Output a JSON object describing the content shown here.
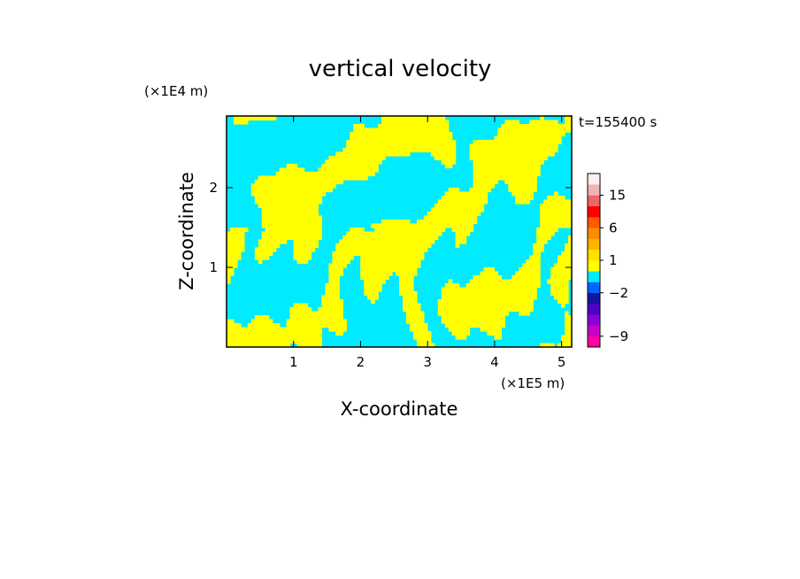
{
  "chart_data": {
    "type": "heatmap",
    "title": "vertical velocity",
    "xlabel": "X-coordinate",
    "ylabel": "Z-coordinate",
    "x_scale_label": "(×1E5 m)",
    "y_scale_label": "(×1E4 m)",
    "time_label": "t=155400 s",
    "xlim": [
      0,
      5.15
    ],
    "ylim": [
      0,
      2.9
    ],
    "x_ticks": [
      {
        "value": 1,
        "label": "1"
      },
      {
        "value": 2,
        "label": "2"
      },
      {
        "value": 3,
        "label": "3"
      },
      {
        "value": 4,
        "label": "4"
      },
      {
        "value": 5,
        "label": "5"
      }
    ],
    "y_ticks": [
      {
        "value": 1,
        "label": "1"
      },
      {
        "value": 2,
        "label": "2"
      }
    ],
    "field_colors": {
      "positive": "#ffff00",
      "negative": "#00ebff"
    },
    "colorbar": {
      "bins": [
        {
          "lo": -12,
          "hi": -9,
          "color": "#ff00a0"
        },
        {
          "lo": -9,
          "hi": -6,
          "color": "#c800c8"
        },
        {
          "lo": -6,
          "hi": -4,
          "color": "#8c00dc"
        },
        {
          "lo": -4,
          "hi": -3,
          "color": "#5000c8"
        },
        {
          "lo": -3,
          "hi": -2,
          "color": "#1414a0"
        },
        {
          "lo": -2,
          "hi": -1,
          "color": "#0064ff"
        },
        {
          "lo": -1,
          "hi": 0,
          "color": "#00ebff"
        },
        {
          "lo": 0,
          "hi": 1,
          "color": "#ffff00"
        },
        {
          "lo": 1,
          "hi": 2,
          "color": "#ffe100"
        },
        {
          "lo": 2,
          "hi": 4,
          "color": "#ffb400"
        },
        {
          "lo": 4,
          "hi": 6,
          "color": "#ff8c00"
        },
        {
          "lo": 6,
          "hi": 9,
          "color": "#ff5a00"
        },
        {
          "lo": 9,
          "hi": 12,
          "color": "#ff0000"
        },
        {
          "lo": 12,
          "hi": 15,
          "color": "#f06464"
        },
        {
          "lo": 15,
          "hi": 20,
          "color": "#f0b4b4"
        },
        {
          "lo": 20,
          "hi": 30,
          "color": "#fff0f0"
        }
      ],
      "labels": [
        {
          "value": 15,
          "label": "15"
        },
        {
          "value": 6,
          "label": "6"
        },
        {
          "value": 1,
          "label": "1"
        },
        {
          "value": -2,
          "label": "−2"
        },
        {
          "value": -9,
          "label": "−9"
        }
      ]
    }
  }
}
